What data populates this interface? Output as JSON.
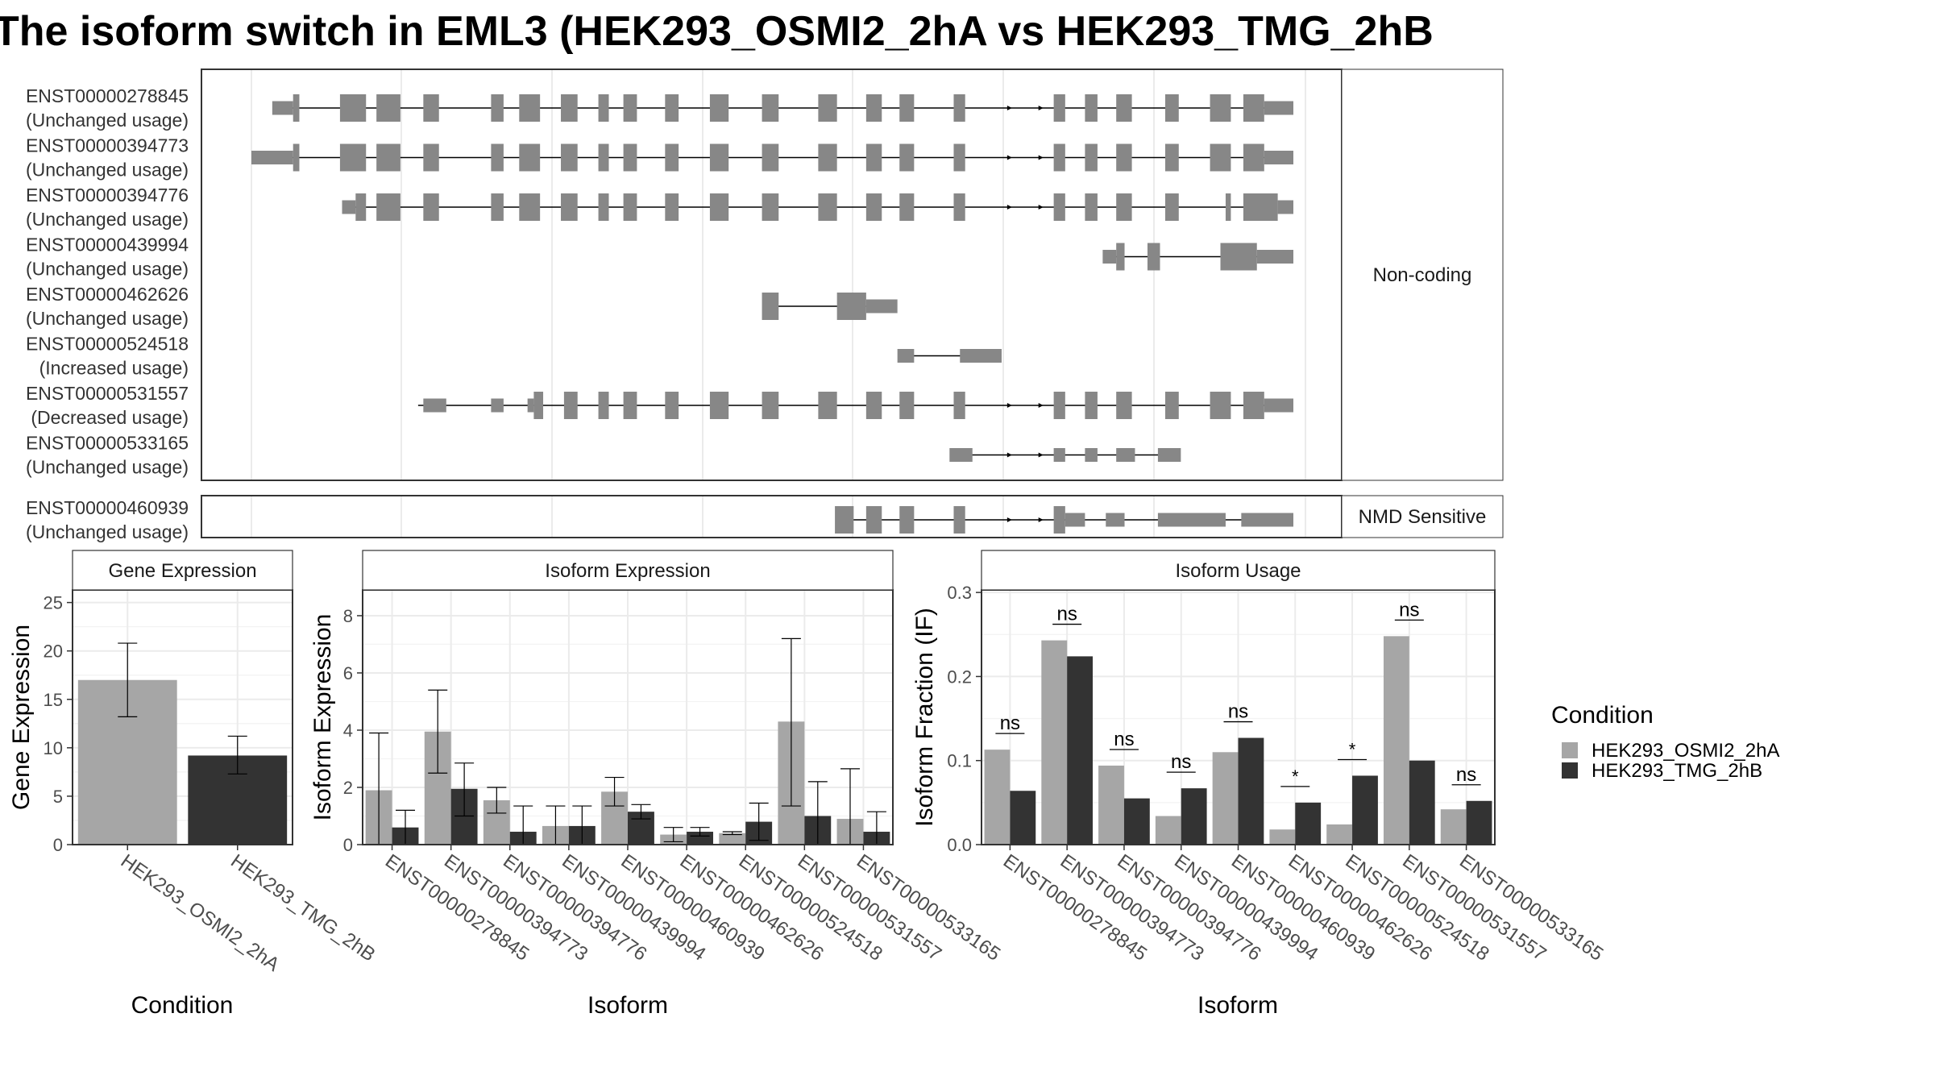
{
  "title": "The isoform switch in EML3 (HEK293_OSMI2_2hA vs HEK293_TMG_2hB",
  "colors": {
    "condition_a": "#a6a6a6",
    "condition_b": "#333333",
    "exon": "#878787",
    "panel_border": "#333333",
    "strip_bg": "#ffffff",
    "grid": "#ebebeb"
  },
  "legend": {
    "title": "Condition",
    "items": [
      "HEK293_OSMI2_2hA",
      "HEK293_TMG_2hB"
    ],
    "placement": "right"
  },
  "structure": {
    "groups": [
      {
        "label": "Non-coding",
        "transcripts": [
          {
            "id": "ENST00000278845",
            "usage": "(Unchanged usage)",
            "intron": [
              0.035,
              0.98
            ],
            "exons": [
              [
                0.02,
                0.04,
                0.5
              ],
              [
                0.04,
                0.046,
                1
              ],
              [
                0.085,
                0.11,
                1
              ],
              [
                0.12,
                0.143,
                1
              ],
              [
                0.165,
                0.18,
                1
              ],
              [
                0.23,
                0.242,
                1
              ],
              [
                0.257,
                0.277,
                1
              ],
              [
                0.297,
                0.313,
                1
              ],
              [
                0.333,
                0.343,
                1
              ],
              [
                0.357,
                0.37,
                1
              ],
              [
                0.397,
                0.41,
                1
              ],
              [
                0.44,
                0.458,
                1
              ],
              [
                0.49,
                0.506,
                1
              ],
              [
                0.544,
                0.562,
                1
              ],
              [
                0.59,
                0.605,
                1
              ],
              [
                0.622,
                0.636,
                1
              ],
              [
                0.674,
                0.685,
                1
              ],
              [
                0.77,
                0.781,
                1
              ],
              [
                0.8,
                0.812,
                1
              ],
              [
                0.83,
                0.845,
                1
              ],
              [
                0.877,
                0.89,
                1
              ],
              [
                0.92,
                0.94,
                1
              ],
              [
                0.952,
                0.972,
                1
              ],
              [
                0.972,
                1.0,
                0.5
              ]
            ],
            "arrows": [
              0.73,
              0.76
            ]
          },
          {
            "id": "ENST00000394773",
            "usage": "(Unchanged usage)",
            "intron": [
              0.035,
              0.98
            ],
            "exons": [
              [
                0.0,
                0.04,
                0.5
              ],
              [
                0.04,
                0.046,
                1
              ],
              [
                0.085,
                0.11,
                1
              ],
              [
                0.12,
                0.143,
                1
              ],
              [
                0.165,
                0.18,
                1
              ],
              [
                0.23,
                0.242,
                1
              ],
              [
                0.257,
                0.277,
                1
              ],
              [
                0.297,
                0.313,
                1
              ],
              [
                0.333,
                0.343,
                1
              ],
              [
                0.357,
                0.37,
                1
              ],
              [
                0.397,
                0.41,
                1
              ],
              [
                0.44,
                0.458,
                1
              ],
              [
                0.49,
                0.506,
                1
              ],
              [
                0.544,
                0.562,
                1
              ],
              [
                0.59,
                0.605,
                1
              ],
              [
                0.622,
                0.636,
                1
              ],
              [
                0.674,
                0.685,
                1
              ],
              [
                0.77,
                0.781,
                1
              ],
              [
                0.8,
                0.812,
                1
              ],
              [
                0.83,
                0.845,
                1
              ],
              [
                0.877,
                0.89,
                1
              ],
              [
                0.92,
                0.94,
                1
              ],
              [
                0.952,
                0.972,
                1
              ],
              [
                0.972,
                1.0,
                0.5
              ]
            ],
            "arrows": [
              0.73,
              0.76
            ]
          },
          {
            "id": "ENST00000394776",
            "usage": "(Unchanged usage)",
            "intron": [
              0.09,
              0.98
            ],
            "exons": [
              [
                0.087,
                0.1,
                0.5
              ],
              [
                0.1,
                0.11,
                1
              ],
              [
                0.12,
                0.143,
                1
              ],
              [
                0.165,
                0.18,
                1
              ],
              [
                0.23,
                0.242,
                1
              ],
              [
                0.257,
                0.277,
                1
              ],
              [
                0.297,
                0.313,
                1
              ],
              [
                0.333,
                0.343,
                1
              ],
              [
                0.357,
                0.37,
                1
              ],
              [
                0.397,
                0.41,
                1
              ],
              [
                0.44,
                0.458,
                1
              ],
              [
                0.49,
                0.506,
                1
              ],
              [
                0.544,
                0.562,
                1
              ],
              [
                0.59,
                0.605,
                1
              ],
              [
                0.622,
                0.636,
                1
              ],
              [
                0.674,
                0.685,
                1
              ],
              [
                0.77,
                0.781,
                1
              ],
              [
                0.8,
                0.812,
                1
              ],
              [
                0.83,
                0.845,
                1
              ],
              [
                0.877,
                0.89,
                1
              ],
              [
                0.935,
                0.94,
                1
              ],
              [
                0.952,
                0.985,
                1
              ],
              [
                0.985,
                1.0,
                0.5
              ]
            ],
            "arrows": [
              0.73,
              0.76
            ]
          },
          {
            "id": "ENST00000439994",
            "usage": "(Unchanged usage)",
            "intron": [
              0.82,
              0.98
            ],
            "exons": [
              [
                0.817,
                0.83,
                0.5
              ],
              [
                0.83,
                0.838,
                1
              ],
              [
                0.86,
                0.872,
                1
              ],
              [
                0.93,
                0.965,
                1
              ],
              [
                0.965,
                1.0,
                0.5
              ]
            ],
            "arrows": []
          },
          {
            "id": "ENST00000462626",
            "usage": "(Unchanged usage)",
            "intron": [
              0.5,
              0.59
            ],
            "exons": [
              [
                0.49,
                0.506,
                1
              ],
              [
                0.562,
                0.59,
                1
              ],
              [
                0.59,
                0.62,
                0.5
              ]
            ],
            "arrows": []
          },
          {
            "id": "ENST00000524518",
            "usage": "(Increased usage)",
            "intron": [
              0.63,
              0.7
            ],
            "exons": [
              [
                0.62,
                0.636,
                0.5
              ],
              [
                0.68,
                0.72,
                0.5
              ]
            ],
            "arrows": []
          },
          {
            "id": "ENST00000531557",
            "usage": "(Decreased usage)",
            "intron": [
              0.16,
              0.98
            ],
            "exons": [
              [
                0.165,
                0.187,
                0.5
              ],
              [
                0.23,
                0.242,
                0.5
              ],
              [
                0.265,
                0.271,
                0.5
              ],
              [
                0.271,
                0.28,
                1
              ],
              [
                0.3,
                0.313,
                1
              ],
              [
                0.333,
                0.343,
                1
              ],
              [
                0.357,
                0.37,
                1
              ],
              [
                0.397,
                0.41,
                1
              ],
              [
                0.44,
                0.458,
                1
              ],
              [
                0.49,
                0.506,
                1
              ],
              [
                0.544,
                0.562,
                1
              ],
              [
                0.59,
                0.605,
                1
              ],
              [
                0.622,
                0.636,
                1
              ],
              [
                0.674,
                0.685,
                1
              ],
              [
                0.77,
                0.781,
                1
              ],
              [
                0.8,
                0.812,
                1
              ],
              [
                0.83,
                0.845,
                1
              ],
              [
                0.877,
                0.89,
                1
              ],
              [
                0.92,
                0.94,
                1
              ],
              [
                0.952,
                0.972,
                1
              ],
              [
                0.972,
                1.0,
                0.5
              ]
            ],
            "arrows": [
              0.73,
              0.76
            ]
          },
          {
            "id": "ENST00000533165",
            "usage": "(Unchanged usage)",
            "intron": [
              0.68,
              0.88
            ],
            "exons": [
              [
                0.67,
                0.692,
                0.5
              ],
              [
                0.77,
                0.781,
                0.5
              ],
              [
                0.8,
                0.812,
                0.5
              ],
              [
                0.83,
                0.848,
                0.5
              ],
              [
                0.87,
                0.892,
                0.5
              ]
            ],
            "arrows": [
              0.73,
              0.76
            ]
          }
        ]
      },
      {
        "label": "NMD Sensitive",
        "transcripts": [
          {
            "id": "ENST00000460939",
            "usage": "(Unchanged usage)",
            "intron": [
              0.57,
              0.98
            ],
            "exons": [
              [
                0.56,
                0.578,
                1
              ],
              [
                0.59,
                0.605,
                1
              ],
              [
                0.622,
                0.636,
                1
              ],
              [
                0.674,
                0.685,
                1
              ],
              [
                0.77,
                0.781,
                1
              ],
              [
                0.781,
                0.8,
                0.5
              ],
              [
                0.82,
                0.838,
                0.5
              ],
              [
                0.87,
                0.935,
                0.5
              ],
              [
                0.95,
                1.0,
                0.5
              ]
            ],
            "arrows": [
              0.73,
              0.76
            ]
          }
        ]
      }
    ]
  },
  "chart_data": [
    {
      "type": "bar",
      "title": "Gene Expression",
      "xlabel": "Condition",
      "ylabel": "Gene Expression",
      "categories": [
        "HEK293_OSMI2_2hA",
        "HEK293_TMG_2hB"
      ],
      "values": [
        17.0,
        9.2
      ],
      "error_low": [
        13.2,
        7.3
      ],
      "error_high": [
        20.8,
        11.2
      ],
      "ylim": [
        0,
        26.3
      ],
      "yticks": [
        0,
        5,
        10,
        15,
        20,
        25
      ],
      "grid": true
    },
    {
      "type": "bar",
      "title": "Isoform Expression",
      "xlabel": "Isoform",
      "ylabel": "Isoform Expression",
      "categories": [
        "ENST00000278845",
        "ENST00000394773",
        "ENST00000394776",
        "ENST00000439994",
        "ENST00000460939",
        "ENST00000462626",
        "ENST00000524518",
        "ENST00000531557",
        "ENST00000533165"
      ],
      "series": [
        {
          "name": "HEK293_OSMI2_2hA",
          "values": [
            1.9,
            3.95,
            1.55,
            0.65,
            1.85,
            0.35,
            0.4,
            4.3,
            0.9
          ],
          "error_low": [
            0.0,
            2.5,
            1.1,
            0.0,
            1.35,
            0.1,
            0.35,
            1.35,
            0.0
          ],
          "error_high": [
            3.9,
            5.4,
            2.0,
            1.35,
            2.35,
            0.6,
            0.45,
            7.2,
            2.65
          ]
        },
        {
          "name": "HEK293_TMG_2hB",
          "values": [
            0.6,
            1.95,
            0.45,
            0.65,
            1.15,
            0.45,
            0.8,
            1.0,
            0.45
          ],
          "error_low": [
            0.0,
            1.0,
            0.0,
            0.0,
            0.9,
            0.3,
            0.15,
            0.0,
            0.0
          ],
          "error_high": [
            1.2,
            2.85,
            1.35,
            1.35,
            1.4,
            0.6,
            1.45,
            2.2,
            1.15
          ]
        }
      ],
      "ylim": [
        0,
        8.9
      ],
      "yticks": [
        0,
        2,
        4,
        6,
        8
      ],
      "grid": true
    },
    {
      "type": "bar",
      "title": "Isoform Usage",
      "xlabel": "Isoform",
      "ylabel": "Isoform Fraction (IF)",
      "categories": [
        "ENST00000278845",
        "ENST00000394773",
        "ENST00000394776",
        "ENST00000439994",
        "ENST00000460939",
        "ENST00000462626",
        "ENST00000524518",
        "ENST00000531557",
        "ENST00000533165"
      ],
      "series": [
        {
          "name": "HEK293_OSMI2_2hA",
          "values": [
            0.113,
            0.243,
            0.094,
            0.034,
            0.11,
            0.018,
            0.024,
            0.248,
            0.042
          ]
        },
        {
          "name": "HEK293_TMG_2hB",
          "values": [
            0.064,
            0.224,
            0.055,
            0.067,
            0.127,
            0.05,
            0.082,
            0.1,
            0.052
          ]
        }
      ],
      "significance": [
        "ns",
        "ns",
        "ns",
        "ns",
        "ns",
        "*",
        "*",
        "ns",
        "ns"
      ],
      "ylim": [
        0,
        0.303
      ],
      "yticks": [
        0.0,
        0.1,
        0.2,
        0.3
      ],
      "ytick_labels": [
        "0.0",
        "0.1",
        "0.2",
        "0.3"
      ],
      "grid": true
    }
  ]
}
